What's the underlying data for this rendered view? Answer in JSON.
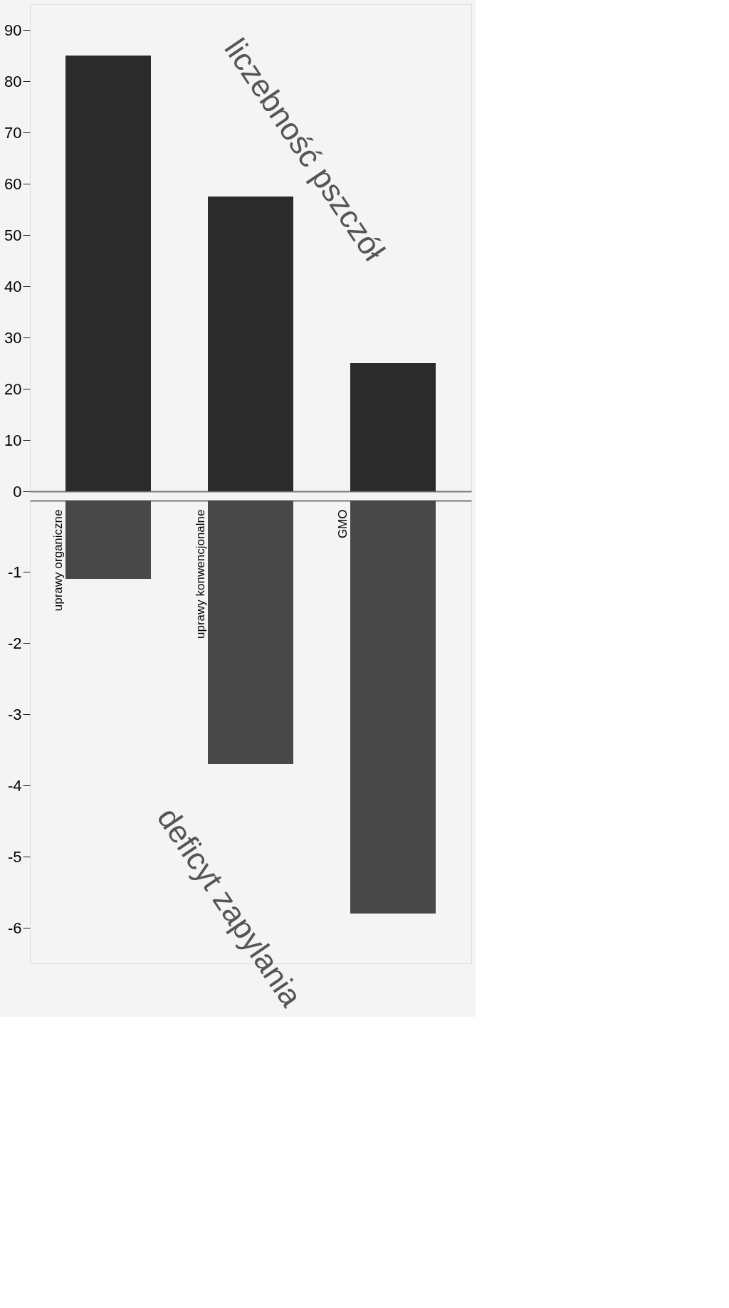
{
  "chart_data": [
    {
      "type": "bar",
      "ylabel": "liczebność pszczół",
      "values": [
        85,
        57.5,
        25
      ],
      "color": "#2b2b2b",
      "ylim": [
        0,
        95
      ],
      "yticks": [
        0,
        10,
        20,
        30,
        40,
        50,
        60,
        70,
        80,
        90
      ],
      "tick_labels": "y",
      "grid": false
    },
    {
      "type": "bar",
      "ylabel": "deficyt zapylania",
      "categories": [
        "uprawy organiczne",
        "uprawy konwencjonalne",
        "GMO"
      ],
      "values": [
        -1.1,
        -3.7,
        -5.8
      ],
      "color": "#484848",
      "ylim": [
        -6.5,
        0
      ],
      "yticks": [
        -6,
        -5,
        -4,
        -3,
        -2,
        -1
      ],
      "grid": false
    }
  ]
}
